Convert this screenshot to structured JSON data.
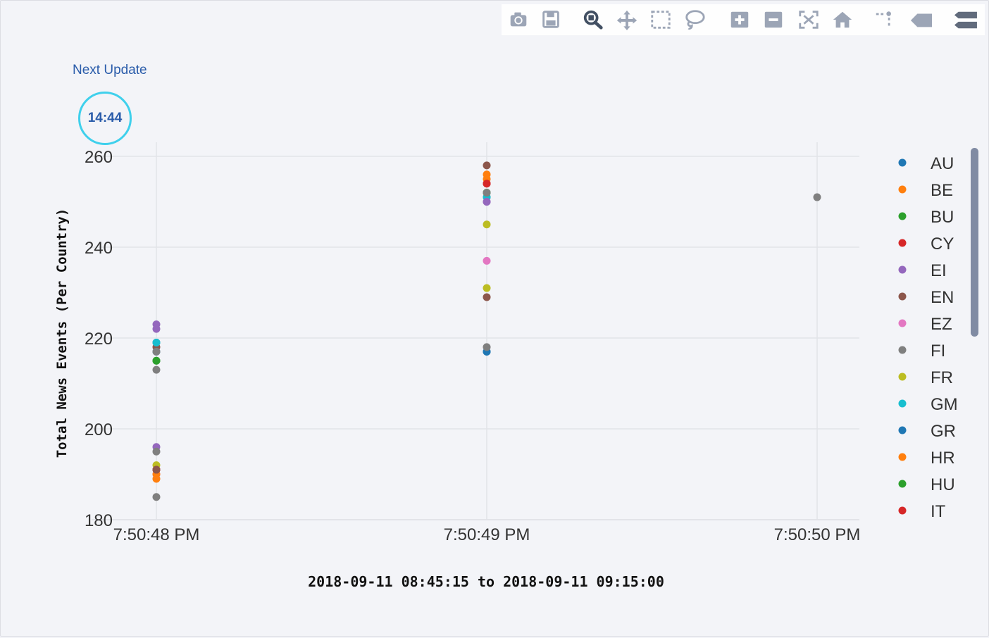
{
  "widget": {
    "next_update_label": "Next Update",
    "countdown": "14:44",
    "accent_color": "#3fd0ec",
    "link_color": "#2a5caa"
  },
  "modebar": {
    "buttons": [
      {
        "icon": "camera-icon"
      },
      {
        "icon": "save-icon"
      },
      {
        "icon": "zoom-icon"
      },
      {
        "icon": "pan-icon"
      },
      {
        "icon": "box-select-icon"
      },
      {
        "icon": "lasso-select-icon"
      },
      {
        "icon": "zoom-in-icon"
      },
      {
        "icon": "zoom-out-icon"
      },
      {
        "icon": "autoscale-icon"
      },
      {
        "icon": "reset-axes-icon"
      },
      {
        "icon": "spike-lines-icon"
      },
      {
        "icon": "hover-closest-icon"
      },
      {
        "icon": "hover-compare-icon"
      }
    ]
  },
  "chart_data": {
    "type": "scatter",
    "xlabel": "2018-09-11 08:45:15 to 2018-09-11 09:15:00",
    "ylabel": "Total News Events (Per Country)",
    "x_ticks": [
      "7:50:48 PM",
      "7:50:49 PM",
      "7:50:50 PM"
    ],
    "y_ticks": [
      180,
      200,
      220,
      240,
      260
    ],
    "ylim": [
      180,
      260
    ],
    "grid": true,
    "legend_position": "right",
    "series": [
      {
        "name": "AU",
        "color": "#1f77b4",
        "x": [
          "7:50:48 PM",
          "7:50:49 PM"
        ],
        "y": [
          219,
          217
        ]
      },
      {
        "name": "BE",
        "color": "#ff7f0e",
        "x": [
          "7:50:48 PM",
          "7:50:49 PM"
        ],
        "y": [
          189,
          256
        ]
      },
      {
        "name": "BU",
        "color": "#2ca02c",
        "x": [
          "7:50:48 PM",
          "7:50:49 PM"
        ],
        "y": [
          215,
          252
        ]
      },
      {
        "name": "CY",
        "color": "#d62728",
        "x": [
          "7:50:48 PM",
          "7:50:49 PM"
        ],
        "y": [
          191,
          254
        ]
      },
      {
        "name": "EI",
        "color": "#9467bd",
        "x": [
          "7:50:48 PM",
          "7:50:49 PM"
        ],
        "y": [
          223,
          250
        ]
      },
      {
        "name": "EN",
        "color": "#8c564b",
        "x": [
          "7:50:48 PM",
          "7:50:49 PM"
        ],
        "y": [
          218,
          258
        ]
      },
      {
        "name": "EZ",
        "color": "#e377c2",
        "x": [
          "7:50:48 PM",
          "7:50:49 PM"
        ],
        "y": [
          190,
          237
        ]
      },
      {
        "name": "FI",
        "color": "#7f7f7f",
        "x": [
          "7:50:48 PM",
          "7:50:49 PM",
          "7:50:50 PM"
        ],
        "y": [
          213,
          251,
          251
        ]
      },
      {
        "name": "FR",
        "color": "#bcbd22",
        "x": [
          "7:50:48 PM",
          "7:50:49 PM"
        ],
        "y": [
          192,
          245
        ]
      },
      {
        "name": "GM",
        "color": "#17becf",
        "x": [
          "7:50:48 PM",
          "7:50:49 PM"
        ],
        "y": [
          219,
          251
        ]
      },
      {
        "name": "GR",
        "color": "#1f77b4",
        "x": [
          "7:50:48 PM",
          "7:50:49 PM"
        ],
        "y": [
          217,
          217
        ]
      },
      {
        "name": "HR",
        "color": "#ff7f0e",
        "x": [
          "7:50:48 PM",
          "7:50:49 PM"
        ],
        "y": [
          190,
          255
        ]
      },
      {
        "name": "HU",
        "color": "#2ca02c",
        "x": [
          "7:50:48 PM",
          "7:50:49 PM"
        ],
        "y": [
          215,
          252
        ]
      },
      {
        "name": "IT",
        "color": "#d62728",
        "x": [
          "7:50:48 PM",
          "7:50:49 PM"
        ],
        "y": [
          191,
          254
        ]
      },
      {
        "name": "",
        "color": "#9467bd",
        "x": [
          "7:50:48 PM",
          "7:50:49 PM"
        ],
        "y": [
          196,
          250
        ]
      },
      {
        "name": "",
        "color": "#8c564b",
        "x": [
          "7:50:48 PM",
          "7:50:49 PM"
        ],
        "y": [
          191,
          229
        ]
      },
      {
        "name": "",
        "color": "#7f7f7f",
        "x": [
          "7:50:48 PM",
          "7:50:49 PM"
        ],
        "y": [
          185,
          218
        ]
      },
      {
        "name": "",
        "color": "#7f7f7f",
        "x": [
          "7:50:48 PM"
        ],
        "y": [
          195
        ]
      },
      {
        "name": "",
        "color": "#9467bd",
        "x": [
          "7:50:48 PM"
        ],
        "y": [
          222
        ]
      },
      {
        "name": "",
        "color": "#7f7f7f",
        "x": [
          "7:50:48 PM",
          "7:50:49 PM"
        ],
        "y": [
          217,
          252
        ]
      },
      {
        "name": "",
        "color": "#bcbd22",
        "x": [
          "7:50:49 PM"
        ],
        "y": [
          231
        ]
      }
    ]
  }
}
